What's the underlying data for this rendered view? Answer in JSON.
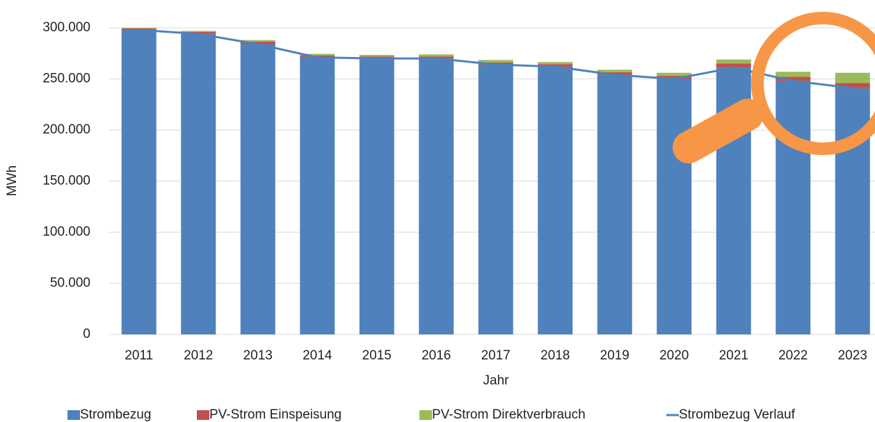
{
  "chart_data": {
    "type": "stacked_bar_line",
    "x_label": "Jahr",
    "y_label": "MWh",
    "categories": [
      "2011",
      "2012",
      "2013",
      "2014",
      "2015",
      "2016",
      "2017",
      "2018",
      "2019",
      "2020",
      "2021",
      "2022",
      "2023"
    ],
    "series": [
      {
        "name": "Strombezug",
        "color": "#4f81bd",
        "kind": "bar",
        "values": [
          298000,
          294000,
          284000,
          271000,
          270000,
          270000,
          264000,
          262000,
          254000,
          250000,
          261000,
          248000,
          241000
        ]
      },
      {
        "name": "PV-Strom Einspeisung",
        "color": "#c0504d",
        "kind": "bar",
        "values": [
          1500,
          2000,
          2500,
          2000,
          2000,
          2000,
          2000,
          2500,
          2500,
          3000,
          4000,
          4000,
          5000
        ]
      },
      {
        "name": "PV-Strom Direktverbrauch",
        "color": "#9bbb59",
        "kind": "bar",
        "values": [
          500,
          1000,
          1500,
          1500,
          1500,
          2000,
          2500,
          2000,
          2500,
          3000,
          4000,
          5000,
          10000
        ]
      },
      {
        "name": "Strombezug Verlauf",
        "color": "#4f81bd",
        "kind": "line",
        "values": [
          298000,
          294000,
          284000,
          271000,
          270000,
          270000,
          264000,
          262000,
          254000,
          250000,
          261000,
          248000,
          241000
        ]
      }
    ],
    "ylim": [
      0,
      300000
    ],
    "yticks": [
      0,
      {
        "value": 50000,
        "label": "50.000"
      },
      {
        "value": 100000,
        "label": "100.000"
      },
      {
        "value": 150000,
        "label": "150.000"
      },
      {
        "value": 200000,
        "label": "200.000"
      },
      {
        "value": 250000,
        "label": "250.000"
      },
      {
        "value": 300000,
        "label": "300.000"
      }
    ],
    "grid": true,
    "legend": "bottom"
  }
}
